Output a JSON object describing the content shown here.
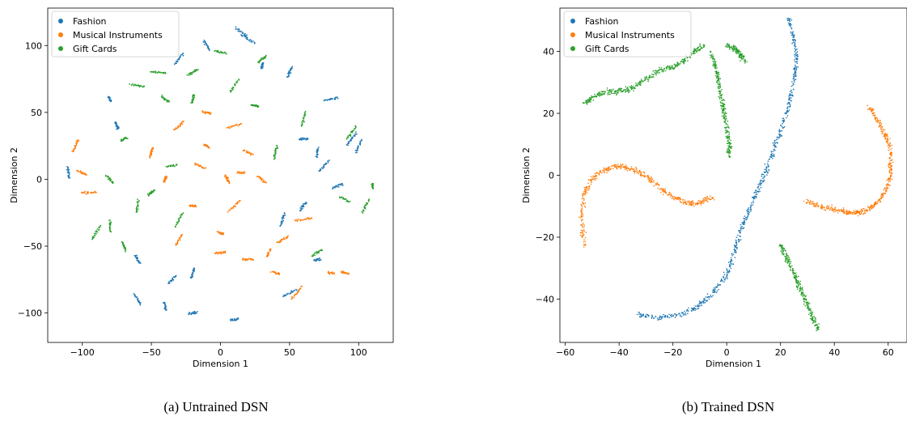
{
  "captions": {
    "a": "(a) Untrained DSN",
    "b": "(b) Trained DSN"
  },
  "colors": {
    "Fashion": "#1f77b4",
    "Musical Instruments": "#ff7f0e",
    "Gift Cards": "#2ca02c"
  },
  "chart_data": [
    {
      "type": "scatter",
      "title": "",
      "xlabel": "Dimension 1",
      "ylabel": "Dimension 2",
      "xlim": [
        -125,
        125
      ],
      "ylim": [
        -122,
        128
      ],
      "xticks": [
        -100,
        -50,
        0,
        50,
        100
      ],
      "yticks": [
        -100,
        -50,
        0,
        50,
        100
      ],
      "grid": false,
      "legend_position": "top-left",
      "series": [
        {
          "name": "Fashion",
          "color": "#1f77b4",
          "description": "scattered short curved strands on the outer ring",
          "sample_points": [
            [
              -60,
              -60
            ],
            [
              -40,
              -95
            ],
            [
              -20,
              -100
            ],
            [
              10,
              -105
            ],
            [
              50,
              -85
            ],
            [
              70,
              -60
            ],
            [
              95,
              30
            ],
            [
              80,
              60
            ],
            [
              50,
              80
            ],
            [
              20,
              105
            ],
            [
              -10,
              100
            ],
            [
              -30,
              90
            ],
            [
              -80,
              60
            ],
            [
              -110,
              5
            ],
            [
              60,
              -20
            ],
            [
              85,
              -5
            ],
            [
              70,
              20
            ],
            [
              -60,
              -90
            ],
            [
              -35,
              -75
            ],
            [
              30,
              85
            ],
            [
              60,
              30
            ],
            [
              -20,
              -70
            ],
            [
              45,
              -30
            ],
            [
              75,
              10
            ],
            [
              100,
              25
            ],
            [
              15,
              110
            ],
            [
              -75,
              40
            ]
          ]
        },
        {
          "name": "Musical Instruments",
          "color": "#ff7f0e",
          "description": "dense central cluster plus lower-right lobe",
          "sample_points": [
            [
              -105,
              25
            ],
            [
              -100,
              5
            ],
            [
              -95,
              -10
            ],
            [
              -50,
              20
            ],
            [
              -30,
              40
            ],
            [
              -10,
              50
            ],
            [
              10,
              40
            ],
            [
              20,
              20
            ],
            [
              5,
              0
            ],
            [
              -20,
              -20
            ],
            [
              -30,
              -45
            ],
            [
              0,
              -55
            ],
            [
              20,
              -60
            ],
            [
              45,
              -45
            ],
            [
              60,
              -30
            ],
            [
              40,
              -70
            ],
            [
              55,
              -85
            ],
            [
              80,
              -70
            ],
            [
              90,
              -70
            ],
            [
              -10,
              25
            ],
            [
              10,
              -20
            ],
            [
              30,
              0
            ],
            [
              -40,
              0
            ],
            [
              0,
              -40
            ],
            [
              35,
              -55
            ],
            [
              -15,
              10
            ],
            [
              15,
              5
            ]
          ]
        },
        {
          "name": "Gift Cards",
          "color": "#2ca02c",
          "description": "curved strands interleaved at mid radius",
          "sample_points": [
            [
              -70,
              -50
            ],
            [
              -80,
              -35
            ],
            [
              -70,
              30
            ],
            [
              -60,
              70
            ],
            [
              -40,
              60
            ],
            [
              -20,
              80
            ],
            [
              10,
              70
            ],
            [
              30,
              90
            ],
            [
              -50,
              -10
            ],
            [
              -35,
              10
            ],
            [
              -30,
              -30
            ],
            [
              40,
              20
            ],
            [
              60,
              45
            ],
            [
              90,
              -15
            ],
            [
              105,
              -20
            ],
            [
              110,
              -5
            ],
            [
              -90,
              -40
            ],
            [
              -45,
              80
            ],
            [
              0,
              95
            ],
            [
              25,
              55
            ],
            [
              -60,
              -20
            ],
            [
              -80,
              0
            ],
            [
              95,
              35
            ],
            [
              70,
              -55
            ],
            [
              -20,
              60
            ]
          ]
        }
      ]
    },
    {
      "type": "scatter",
      "title": "",
      "xlabel": "Dimension 1",
      "ylabel": "Dimension 2",
      "xlim": [
        -62,
        67
      ],
      "ylim": [
        -54,
        54
      ],
      "xticks": [
        -60,
        -40,
        -20,
        0,
        20,
        40,
        60
      ],
      "yticks": [
        -40,
        -20,
        0,
        20,
        40
      ],
      "grid": false,
      "legend_position": "top-left",
      "series": [
        {
          "name": "Fashion",
          "color": "#1f77b4",
          "description": "long band from lower-left to top-right",
          "curves": [
            [
              [
                -33,
                -45
              ],
              [
                -25,
                -46
              ],
              [
                -17,
                -45
              ],
              [
                -10,
                -42
              ],
              [
                -5,
                -38
              ],
              [
                0,
                -32
              ],
              [
                3,
                -25
              ],
              [
                5,
                -18
              ],
              [
                8,
                -12
              ],
              [
                11,
                -6
              ],
              [
                14,
                0
              ],
              [
                17,
                7
              ],
              [
                20,
                14
              ],
              [
                23,
                22
              ],
              [
                25,
                30
              ],
              [
                26,
                37
              ],
              [
                25,
                44
              ],
              [
                23,
                51
              ]
            ]
          ]
        },
        {
          "name": "Musical Instruments",
          "color": "#ff7f0e",
          "description": "left S-arc and right C-arc",
          "curves": [
            [
              [
                -53,
                -23
              ],
              [
                -54,
                -14
              ],
              [
                -53,
                -6
              ],
              [
                -50,
                -1
              ],
              [
                -45,
                2
              ],
              [
                -40,
                3
              ],
              [
                -35,
                2
              ],
              [
                -30,
                0
              ],
              [
                -25,
                -4
              ],
              [
                -20,
                -7
              ],
              [
                -15,
                -9
              ],
              [
                -10,
                -9
              ],
              [
                -5,
                -7
              ]
            ],
            [
              [
                29,
                -8
              ],
              [
                35,
                -10
              ],
              [
                40,
                -11
              ],
              [
                45,
                -12
              ],
              [
                49,
                -12
              ],
              [
                53,
                -11
              ],
              [
                57,
                -8
              ],
              [
                60,
                -3
              ],
              [
                61,
                2
              ],
              [
                61,
                8
              ],
              [
                59,
                13
              ],
              [
                56,
                18
              ],
              [
                53,
                22
              ]
            ]
          ]
        },
        {
          "name": "Gift Cards",
          "color": "#2ca02c",
          "description": "upper-left arc, central strand, lower-right diagonal",
          "curves": [
            [
              [
                -53,
                23
              ],
              [
                -50,
                25
              ],
              [
                -45,
                27
              ],
              [
                -40,
                27
              ],
              [
                -35,
                28
              ],
              [
                -30,
                31
              ],
              [
                -25,
                34
              ],
              [
                -20,
                35
              ],
              [
                -16,
                37
              ],
              [
                -12,
                40
              ],
              [
                -8,
                42
              ]
            ],
            [
              [
                -6,
                40
              ],
              [
                -4,
                35
              ],
              [
                -3,
                30
              ],
              [
                -2,
                25
              ],
              [
                -1,
                20
              ],
              [
                0,
                15
              ],
              [
                1,
                10
              ],
              [
                1,
                6
              ]
            ],
            [
              [
                0,
                42
              ],
              [
                3,
                41
              ],
              [
                5,
                39
              ],
              [
                7,
                37
              ]
            ],
            [
              [
                20,
                -22
              ],
              [
                22,
                -26
              ],
              [
                24,
                -30
              ],
              [
                26,
                -34
              ],
              [
                28,
                -38
              ],
              [
                30,
                -42
              ],
              [
                32,
                -46
              ],
              [
                34,
                -50
              ]
            ]
          ]
        }
      ]
    }
  ]
}
